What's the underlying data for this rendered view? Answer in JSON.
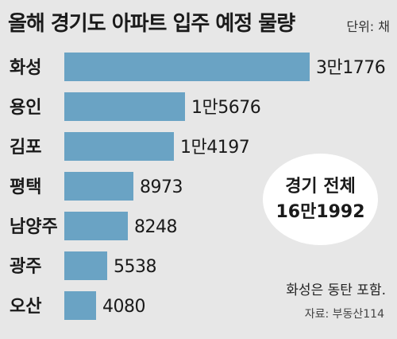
{
  "header": {
    "title": "올해 경기도 아파트 입주 예정 물량",
    "unit": "단위: 채"
  },
  "total": {
    "label": "경기 전체",
    "value_text": "16만1992"
  },
  "note": "화성은 동탄 포함.",
  "source": "자료: 부동산114",
  "colors": {
    "bar": "#6aa3c4",
    "background": "#e7e7e7",
    "circle": "#ffffff"
  },
  "chart_data": {
    "type": "bar",
    "orientation": "horizontal",
    "categories": [
      "화성",
      "용인",
      "김포",
      "평택",
      "남양주",
      "광주",
      "오산"
    ],
    "values": [
      31776,
      15676,
      14197,
      8973,
      8248,
      5538,
      4080
    ],
    "value_labels": [
      "3만1776",
      "1만5676",
      "1만4197",
      "8973",
      "8248",
      "5538",
      "4080"
    ],
    "title": "올해 경기도 아파트 입주 예정 물량",
    "xlabel": "",
    "ylabel": "",
    "xlim": [
      0,
      31776
    ],
    "grid": false,
    "legend": "none"
  }
}
